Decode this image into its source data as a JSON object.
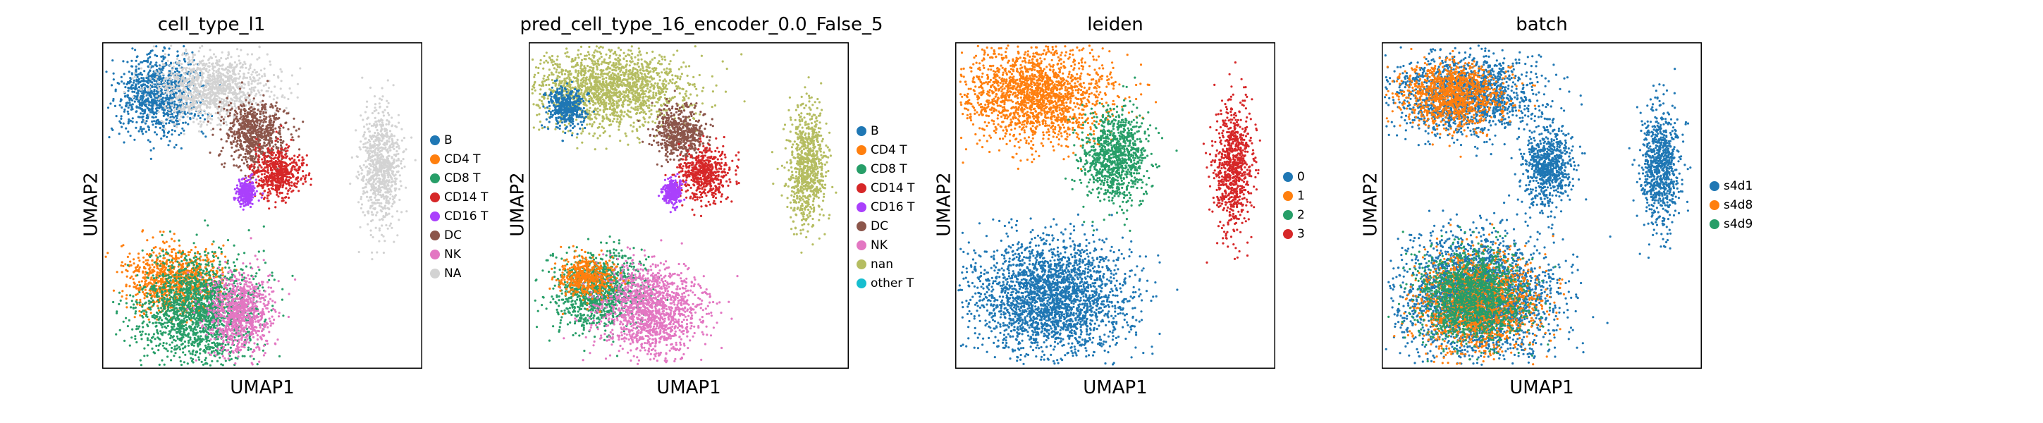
{
  "figure": {
    "panels": [
      {
        "title": "cell_type_l1",
        "xlabel": "UMAP1",
        "ylabel": "UMAP2",
        "legend": [
          {
            "label": "B",
            "color": "#1f77b4"
          },
          {
            "label": "CD4 T",
            "color": "#ff7f0e"
          },
          {
            "label": "CD8 T",
            "color": "#279e68"
          },
          {
            "label": "CD14 T",
            "color": "#d62728"
          },
          {
            "label": "CD16 T",
            "color": "#aa40fc"
          },
          {
            "label": "DC",
            "color": "#8c564b"
          },
          {
            "label": "NK",
            "color": "#e377c2"
          },
          {
            "label": "NA",
            "color": "#d3d3d3"
          }
        ]
      },
      {
        "title": "pred_cell_type_16_encoder_0.0_False_5",
        "xlabel": "UMAP1",
        "ylabel": "UMAP2",
        "legend": [
          {
            "label": "B",
            "color": "#1f77b4"
          },
          {
            "label": "CD4 T",
            "color": "#ff7f0e"
          },
          {
            "label": "CD8 T",
            "color": "#279e68"
          },
          {
            "label": "CD14 T",
            "color": "#d62728"
          },
          {
            "label": "CD16 T",
            "color": "#aa40fc"
          },
          {
            "label": "DC",
            "color": "#8c564b"
          },
          {
            "label": "NK",
            "color": "#e377c2"
          },
          {
            "label": "nan",
            "color": "#b5bd61"
          },
          {
            "label": "other T",
            "color": "#17becf"
          }
        ]
      },
      {
        "title": "leiden",
        "xlabel": "UMAP1",
        "ylabel": "UMAP2",
        "legend": [
          {
            "label": "0",
            "color": "#1f77b4"
          },
          {
            "label": "1",
            "color": "#ff7f0e"
          },
          {
            "label": "2",
            "color": "#279e68"
          },
          {
            "label": "3",
            "color": "#d62728"
          }
        ]
      },
      {
        "title": "batch",
        "xlabel": "UMAP1",
        "ylabel": "UMAP2",
        "legend": [
          {
            "label": "s4d1",
            "color": "#1f77b4"
          },
          {
            "label": "s4d8",
            "color": "#ff7f0e"
          },
          {
            "label": "s4d9",
            "color": "#279e68"
          }
        ]
      }
    ]
  },
  "chart_data": [
    {
      "type": "scatter",
      "title": "cell_type_l1",
      "xlabel": "UMAP1",
      "ylabel": "UMAP2",
      "ticks": "none",
      "grid": false,
      "legend_position": "right",
      "clusters": [
        {
          "label": "B",
          "x": 0.18,
          "y": 0.84,
          "sx": 0.06,
          "sy": 0.06
        },
        {
          "label": "NA",
          "x": 0.35,
          "y": 0.86,
          "sx": 0.09,
          "sy": 0.05
        },
        {
          "label": "DC",
          "x": 0.48,
          "y": 0.72,
          "sx": 0.05,
          "sy": 0.05
        },
        {
          "label": "CD14 T",
          "x": 0.55,
          "y": 0.6,
          "sx": 0.04,
          "sy": 0.04
        },
        {
          "label": "CD16 T",
          "x": 0.45,
          "y": 0.54,
          "sx": 0.015,
          "sy": 0.02
        },
        {
          "label": "NA",
          "x": 0.87,
          "y": 0.62,
          "sx": 0.03,
          "sy": 0.09
        },
        {
          "label": "CD4 T",
          "x": 0.22,
          "y": 0.27,
          "sx": 0.07,
          "sy": 0.05
        },
        {
          "label": "CD8 T",
          "x": 0.3,
          "y": 0.18,
          "sx": 0.09,
          "sy": 0.08
        },
        {
          "label": "NK",
          "x": 0.43,
          "y": 0.17,
          "sx": 0.05,
          "sy": 0.06
        }
      ]
    },
    {
      "type": "scatter",
      "title": "pred_cell_type_16_encoder_0.0_False_5",
      "xlabel": "UMAP1",
      "ylabel": "UMAP2",
      "ticks": "none",
      "grid": false,
      "legend_position": "right",
      "clusters": [
        {
          "label": "nan",
          "x": 0.25,
          "y": 0.86,
          "sx": 0.12,
          "sy": 0.06
        },
        {
          "label": "B",
          "x": 0.12,
          "y": 0.8,
          "sx": 0.03,
          "sy": 0.03
        },
        {
          "label": "DC",
          "x": 0.47,
          "y": 0.72,
          "sx": 0.04,
          "sy": 0.04
        },
        {
          "label": "CD14 T",
          "x": 0.55,
          "y": 0.6,
          "sx": 0.04,
          "sy": 0.04
        },
        {
          "label": "CD16 T",
          "x": 0.45,
          "y": 0.54,
          "sx": 0.015,
          "sy": 0.02
        },
        {
          "label": "nan",
          "x": 0.87,
          "y": 0.62,
          "sx": 0.03,
          "sy": 0.09
        },
        {
          "label": "CD8 T",
          "x": 0.22,
          "y": 0.24,
          "sx": 0.07,
          "sy": 0.06
        },
        {
          "label": "NK",
          "x": 0.38,
          "y": 0.18,
          "sx": 0.08,
          "sy": 0.07
        },
        {
          "label": "CD4 T",
          "x": 0.18,
          "y": 0.28,
          "sx": 0.04,
          "sy": 0.03
        }
      ]
    },
    {
      "type": "scatter",
      "title": "leiden",
      "xlabel": "UMAP1",
      "ylabel": "UMAP2",
      "ticks": "none",
      "grid": false,
      "legend_position": "right",
      "clusters": [
        {
          "label": "1",
          "x": 0.25,
          "y": 0.84,
          "sx": 0.11,
          "sy": 0.07
        },
        {
          "label": "2",
          "x": 0.5,
          "y": 0.65,
          "sx": 0.05,
          "sy": 0.07
        },
        {
          "label": "3",
          "x": 0.87,
          "y": 0.62,
          "sx": 0.03,
          "sy": 0.09
        },
        {
          "label": "0",
          "x": 0.3,
          "y": 0.22,
          "sx": 0.12,
          "sy": 0.09
        }
      ]
    },
    {
      "type": "scatter",
      "title": "batch",
      "xlabel": "UMAP1",
      "ylabel": "UMAP2",
      "ticks": "none",
      "grid": false,
      "legend_position": "right",
      "clusters": [
        {
          "label": "s4d1",
          "x": 0.26,
          "y": 0.84,
          "sx": 0.11,
          "sy": 0.06
        },
        {
          "label": "s4d1",
          "x": 0.52,
          "y": 0.62,
          "sx": 0.04,
          "sy": 0.06
        },
        {
          "label": "s4d1",
          "x": 0.87,
          "y": 0.62,
          "sx": 0.03,
          "sy": 0.09
        },
        {
          "label": "s4d1",
          "x": 0.3,
          "y": 0.22,
          "sx": 0.12,
          "sy": 0.09
        },
        {
          "label": "s4d8",
          "x": 0.3,
          "y": 0.2,
          "sx": 0.09,
          "sy": 0.07
        },
        {
          "label": "s4d8",
          "x": 0.22,
          "y": 0.84,
          "sx": 0.08,
          "sy": 0.05
        },
        {
          "label": "s4d9",
          "x": 0.28,
          "y": 0.22,
          "sx": 0.08,
          "sy": 0.07
        }
      ]
    }
  ]
}
